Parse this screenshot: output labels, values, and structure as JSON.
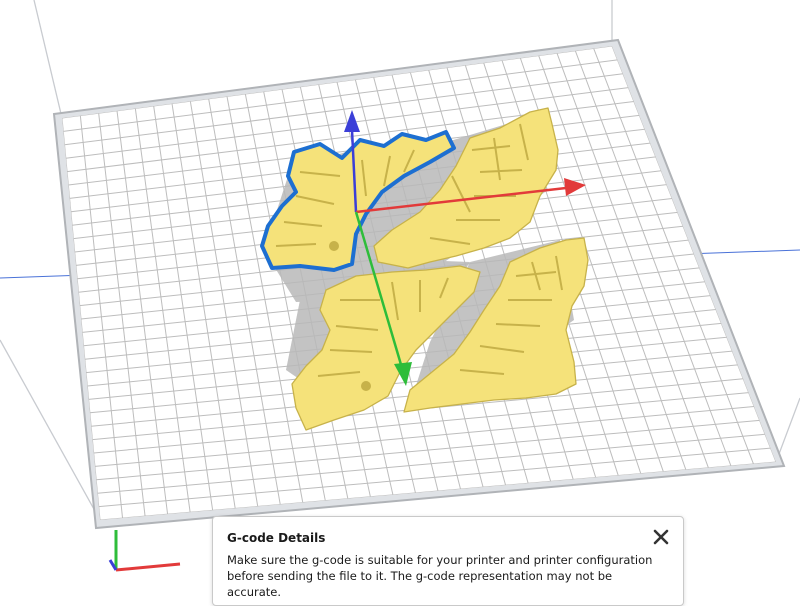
{
  "viewport": {
    "colors": {
      "background": "#ffffff",
      "grid_line": "#bdbdbd",
      "plate_border": "#b0b3b7",
      "model_fill": "#f5e27a",
      "model_edge": "#c7b24a",
      "selection_outline": "#1d6fd1",
      "axis_x": "#e23a3a",
      "axis_y": "#2ebd3a",
      "axis_z": "#3b3fd8"
    },
    "icons": [
      "move-gizmo-x-arrow-icon",
      "move-gizmo-y-arrow-icon",
      "move-gizmo-z-arrow-icon",
      "origin-axes-icon"
    ]
  },
  "toast": {
    "title": "G-code Details",
    "body": "Make sure the g-code is suitable for your printer and printer configuration before sending the file to it. The g-code representation may not be accurate.",
    "close_icon": "close-icon"
  }
}
